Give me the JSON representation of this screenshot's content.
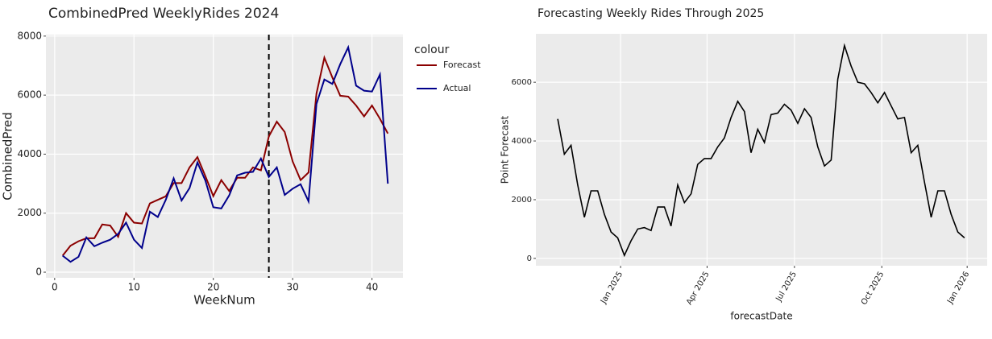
{
  "chart_data": [
    {
      "type": "line",
      "title": "CombinedPred WeeklyRides 2024",
      "x_label": "WeekNum",
      "y_label": "CombinedPred",
      "x": [
        1,
        2,
        3,
        4,
        5,
        6,
        7,
        8,
        9,
        10,
        11,
        12,
        13,
        14,
        15,
        16,
        17,
        18,
        19,
        20,
        21,
        22,
        23,
        24,
        25,
        26,
        27,
        28,
        29,
        30,
        31,
        32,
        33,
        34,
        35,
        36,
        37,
        38,
        39,
        40,
        41,
        42
      ],
      "series": [
        {
          "name": "Forecast",
          "color": "#8b0000",
          "values": [
            560,
            900,
            1050,
            1150,
            1150,
            1620,
            1580,
            1200,
            2000,
            1680,
            1650,
            2330,
            2450,
            2570,
            3020,
            3020,
            3550,
            3900,
            3250,
            2580,
            3120,
            2750,
            3200,
            3200,
            3550,
            3450,
            4600,
            5100,
            4750,
            3750,
            3120,
            3380,
            6050,
            7270,
            6600,
            5980,
            5950,
            5650,
            5280,
            5650,
            5200,
            4700
          ]
        },
        {
          "name": "Actual",
          "color": "#00008b",
          "values": [
            560,
            350,
            520,
            1180,
            880,
            1000,
            1100,
            1300,
            1680,
            1100,
            820,
            2050,
            1870,
            2450,
            3180,
            2430,
            2850,
            3720,
            3100,
            2200,
            2160,
            2600,
            3280,
            3370,
            3400,
            3850,
            3230,
            3550,
            2620,
            2830,
            2980,
            2400,
            5700,
            6530,
            6380,
            7050,
            7620,
            6320,
            6150,
            6120,
            6700,
            3000
          ]
        }
      ],
      "legend_title": "colour",
      "vline": 27,
      "xlim": [
        -1.1,
        43.9
      ],
      "xticks": [
        0,
        10,
        20,
        30,
        40
      ],
      "ylim": [
        -190,
        8050
      ],
      "yticks": [
        0,
        2000,
        4000,
        6000,
        8000
      ],
      "grid": true
    },
    {
      "type": "line",
      "title": "Forecasting Weekly Rides Through 2025",
      "x_label": "forecastDate",
      "y_label": "Point Forecast",
      "categories": [
        null,
        null,
        null,
        null,
        null,
        null,
        null,
        null,
        null,
        null,
        null,
        null,
        null,
        null,
        null,
        null,
        null,
        null,
        null,
        null,
        null,
        null,
        null,
        null,
        null,
        null,
        null,
        null,
        null,
        null,
        null,
        null,
        null,
        null,
        null,
        null,
        null,
        null,
        null,
        null,
        null,
        null,
        null,
        null,
        null,
        null,
        null,
        null,
        null,
        null,
        null,
        null,
        null,
        null,
        null,
        null,
        null,
        null,
        null,
        null,
        null,
        null
      ],
      "series": [
        {
          "color": "#000000",
          "values": [
            4750,
            3550,
            3850,
            2500,
            1400,
            2300,
            2300,
            1500,
            900,
            700,
            100,
            600,
            1000,
            1050,
            950,
            1750,
            1750,
            1100,
            2500,
            1900,
            2200,
            3200,
            3400,
            3400,
            3800,
            4100,
            4800,
            5350,
            5000,
            3600,
            4400,
            3950,
            4900,
            4950,
            5250,
            5050,
            4600,
            5100,
            4800,
            3800,
            3150,
            3350,
            6100,
            7250,
            6550,
            6000,
            5950,
            5650,
            5300,
            5650,
            5200,
            4750,
            4800,
            3600,
            3850,
            2600,
            1400,
            2300,
            2300,
            1500,
            900,
            700
          ]
        }
      ],
      "xlim": [
        -3.27,
        64.4
      ],
      "xticks": [
        {
          "value": 9.43,
          "label": "Jan 2025"
        },
        {
          "value": 22.4,
          "label": "Apr 2025"
        },
        {
          "value": 35.5,
          "label": "Jul 2025"
        },
        {
          "value": 48.6,
          "label": "Oct 2025"
        },
        {
          "value": 61.4,
          "label": "Jan 2026"
        }
      ],
      "ylim": [
        -250,
        7650
      ],
      "yticks": [
        0,
        2000,
        4000,
        6000
      ],
      "grid": true
    }
  ]
}
